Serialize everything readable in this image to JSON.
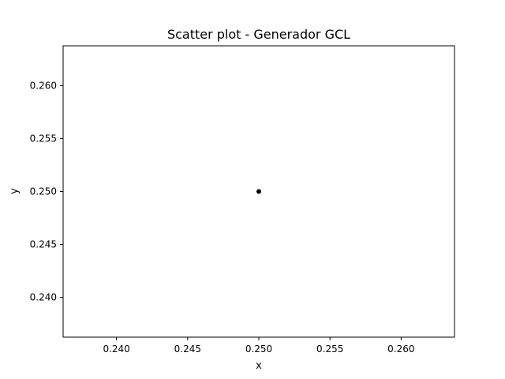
{
  "chart_data": {
    "type": "scatter",
    "title": "Scatter plot - Generador GCL",
    "xlabel": "x",
    "ylabel": "y",
    "xlim": [
      0.23625,
      0.26375
    ],
    "ylim": [
      0.23625,
      0.26375
    ],
    "x_ticks": [
      0.24,
      0.245,
      0.25,
      0.255,
      0.26
    ],
    "x_tick_labels": [
      "0.240",
      "0.245",
      "0.250",
      "0.255",
      "0.260"
    ],
    "y_ticks": [
      0.24,
      0.245,
      0.25,
      0.255,
      0.26
    ],
    "y_tick_labels": [
      "0.240",
      "0.245",
      "0.250",
      "0.255",
      "0.260"
    ],
    "grid": false,
    "points": [
      {
        "x": 0.25,
        "y": 0.25
      }
    ],
    "marker_color": "#000000"
  }
}
